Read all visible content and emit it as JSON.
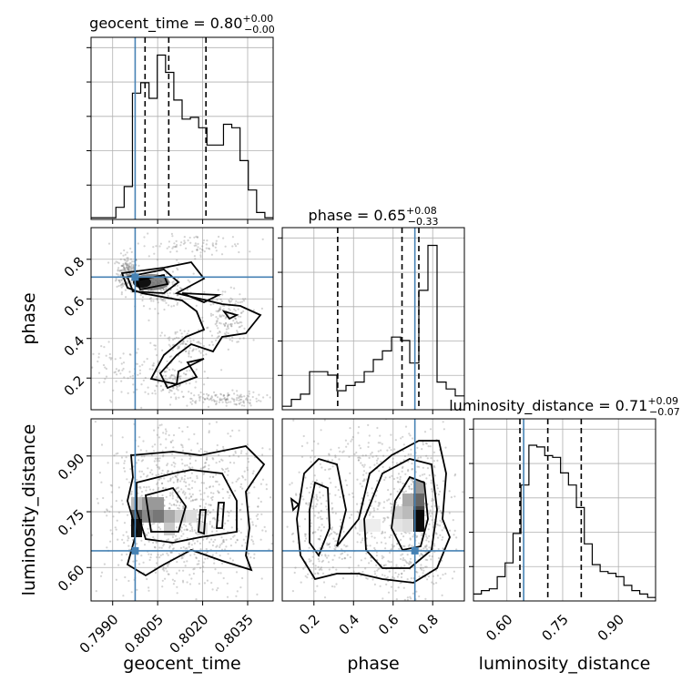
{
  "chart_data": {
    "type": "corner",
    "parameters": [
      "geocent_time",
      "phase",
      "luminosity_distance"
    ],
    "truths": {
      "geocent_time": 0.79975,
      "phase": 0.71,
      "luminosity_distance": 0.645
    },
    "ranges": {
      "geocent_time": [
        0.79828,
        0.80435
      ],
      "phase": [
        0.04,
        0.96
      ],
      "luminosity_distance": [
        0.51,
        1.0
      ]
    },
    "titles": [
      {
        "param": "geocent_time",
        "label": "geocent_time = 0.80",
        "plus": "+0.00",
        "minus": "−0.00"
      },
      {
        "param": "phase",
        "label": "phase = 0.65",
        "plus": "+0.08",
        "minus": "−0.33"
      },
      {
        "param": "luminosity_distance",
        "label": "luminosity_distance = 0.71",
        "plus": "+0.09",
        "minus": "−0.07"
      }
    ],
    "axis_labels": {
      "geocent_time": "geocent_time",
      "phase": "phase",
      "luminosity_distance": "luminosity_distance"
    },
    "ticks": {
      "geocent_time": {
        "values": [
          0.799,
          0.8005,
          0.802,
          0.8035
        ],
        "labels": [
          "0.7990",
          "0.8005",
          "0.8020",
          "0.8035"
        ]
      },
      "phase": {
        "values": [
          0.2,
          0.4,
          0.6,
          0.8
        ],
        "labels": [
          "0.2",
          "0.4",
          "0.6",
          "0.8"
        ]
      },
      "luminosity_distance": {
        "values": [
          0.6,
          0.75,
          0.9
        ],
        "labels": [
          "0.60",
          "0.75",
          "0.90"
        ]
      }
    },
    "quantiles": {
      "geocent_time": [
        0.80008,
        0.80087,
        0.80211
      ],
      "phase": [
        0.32,
        0.645,
        0.73
      ],
      "luminosity_distance": [
        0.635,
        0.71,
        0.8
      ]
    },
    "histograms": {
      "geocent_time": {
        "edges_range": [
          0.79828,
          0.80435
        ],
        "counts": [
          0.01,
          0.01,
          0.01,
          0.07,
          0.19,
          0.73,
          0.79,
          0.7,
          0.95,
          0.85,
          0.69,
          0.58,
          0.59,
          0.53,
          0.43,
          0.43,
          0.55,
          0.53,
          0.34,
          0.17,
          0.04,
          0.01
        ]
      },
      "phase": {
        "edges_range": [
          0.04,
          0.96
        ],
        "counts": [
          0.02,
          0.06,
          0.09,
          0.22,
          0.22,
          0.2,
          0.11,
          0.14,
          0.16,
          0.22,
          0.29,
          0.34,
          0.42,
          0.4,
          0.27,
          0.69,
          0.95,
          0.16,
          0.12,
          0.08
        ]
      },
      "luminosity_distance": {
        "edges_range": [
          0.51,
          1.0
        ],
        "counts": [
          0.04,
          0.06,
          0.07,
          0.14,
          0.22,
          0.39,
          0.67,
          0.9,
          0.89,
          0.84,
          0.83,
          0.74,
          0.67,
          0.54,
          0.33,
          0.21,
          0.17,
          0.16,
          0.14,
          0.09,
          0.06,
          0.04,
          0.02
        ]
      }
    },
    "grid": true
  }
}
